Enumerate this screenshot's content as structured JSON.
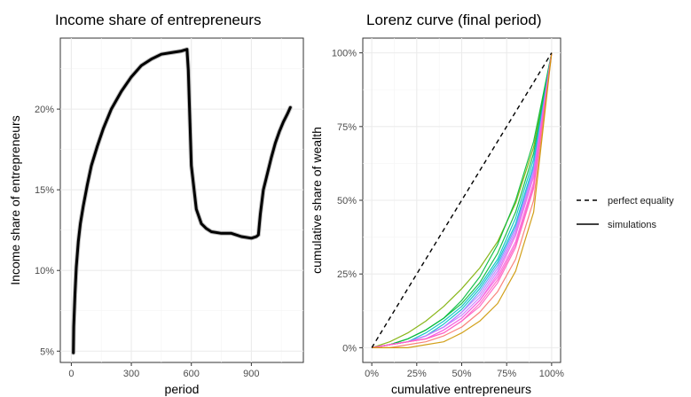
{
  "chart_data": [
    {
      "type": "line",
      "title": "Income share of entrepreneurs",
      "xlabel": "period",
      "ylabel": "Income share of entrepreneurs",
      "xlim": [
        -55,
        1160
      ],
      "ylim": [
        4.3,
        24.4
      ],
      "x_ticks": [
        0,
        300,
        600,
        900
      ],
      "x_tick_labels": [
        "0",
        "300",
        "600",
        "900"
      ],
      "y_ticks": [
        5,
        10,
        15,
        20
      ],
      "y_tick_labels": [
        "5%",
        "10%",
        "15%",
        "20%"
      ],
      "grid": true,
      "series": [
        {
          "color": "#000000",
          "x": [
            10,
            12,
            18,
            25,
            35,
            45,
            60,
            80,
            100,
            130,
            160,
            200,
            250,
            300,
            350,
            400,
            450,
            500,
            550,
            578,
            585,
            600,
            625,
            650,
            675,
            700,
            750,
            800,
            850,
            900,
            925,
            935,
            945,
            960,
            980,
            1000,
            1020,
            1040,
            1060,
            1080,
            1095
          ],
          "values": [
            4.9,
            6.5,
            8.5,
            10.2,
            11.8,
            12.9,
            14.0,
            15.3,
            16.5,
            17.7,
            18.8,
            20.0,
            21.1,
            22.0,
            22.7,
            23.1,
            23.4,
            23.5,
            23.6,
            23.7,
            22.4,
            16.5,
            13.8,
            12.9,
            12.6,
            12.4,
            12.3,
            12.3,
            12.1,
            12.0,
            12.1,
            12.2,
            13.5,
            15.0,
            16.0,
            17.0,
            17.9,
            18.6,
            19.2,
            19.7,
            20.1
          ]
        }
      ]
    },
    {
      "type": "line",
      "title": "Lorenz curve (final period)",
      "xlabel": "cumulative entrepreneurs",
      "ylabel": "cumulative share of wealth",
      "xlim": [
        -0.05,
        1.05
      ],
      "ylim": [
        -0.05,
        1.05
      ],
      "x_ticks": [
        0,
        0.25,
        0.5,
        0.75,
        1
      ],
      "x_tick_labels": [
        "0%",
        "25%",
        "50%",
        "75%",
        "100%"
      ],
      "y_ticks": [
        0,
        0.25,
        0.5,
        0.75,
        1
      ],
      "y_tick_labels": [
        "0%",
        "25%",
        "50%",
        "75%",
        "100%"
      ],
      "grid": true,
      "legend": {
        "position": "right",
        "entries": [
          {
            "label": "perfect equality",
            "linetype": "dashed"
          },
          {
            "label": "simulations",
            "linetype": "solid"
          }
        ]
      },
      "equality_line": {
        "x": [
          0,
          1
        ],
        "values": [
          0,
          1
        ]
      },
      "x": [
        0,
        0.1,
        0.2,
        0.3,
        0.4,
        0.5,
        0.6,
        0.7,
        0.8,
        0.9,
        1.0
      ],
      "series": [
        {
          "color": "#7cae00",
          "values": [
            0,
            0.02,
            0.05,
            0.09,
            0.14,
            0.2,
            0.27,
            0.36,
            0.49,
            0.68,
            1
          ]
        },
        {
          "color": "#00ba38",
          "values": [
            0,
            0.01,
            0.03,
            0.06,
            0.1,
            0.16,
            0.24,
            0.35,
            0.5,
            0.7,
            1
          ]
        },
        {
          "color": "#00ba38",
          "values": [
            0,
            0.01,
            0.03,
            0.06,
            0.1,
            0.15,
            0.22,
            0.32,
            0.46,
            0.66,
            1
          ]
        },
        {
          "color": "#00bfc4",
          "values": [
            0,
            0.01,
            0.02,
            0.05,
            0.09,
            0.14,
            0.21,
            0.3,
            0.44,
            0.64,
            1
          ]
        },
        {
          "color": "#00bfc4",
          "values": [
            0,
            0.01,
            0.02,
            0.04,
            0.08,
            0.13,
            0.2,
            0.29,
            0.42,
            0.62,
            1
          ]
        },
        {
          "color": "#619cff",
          "values": [
            0,
            0.01,
            0.02,
            0.04,
            0.07,
            0.12,
            0.19,
            0.28,
            0.41,
            0.61,
            1
          ]
        },
        {
          "color": "#c77cff",
          "values": [
            0,
            0.01,
            0.02,
            0.04,
            0.07,
            0.12,
            0.18,
            0.27,
            0.4,
            0.6,
            1
          ]
        },
        {
          "color": "#c77cff",
          "values": [
            0,
            0.01,
            0.02,
            0.04,
            0.07,
            0.11,
            0.17,
            0.26,
            0.39,
            0.59,
            1
          ]
        },
        {
          "color": "#f564e3",
          "values": [
            0,
            0.01,
            0.02,
            0.03,
            0.06,
            0.1,
            0.16,
            0.25,
            0.38,
            0.58,
            1
          ]
        },
        {
          "color": "#f564e3",
          "values": [
            0,
            0.01,
            0.02,
            0.03,
            0.06,
            0.1,
            0.16,
            0.24,
            0.36,
            0.56,
            1
          ]
        },
        {
          "color": "#ff61c3",
          "values": [
            0,
            0.01,
            0.02,
            0.03,
            0.05,
            0.09,
            0.15,
            0.23,
            0.35,
            0.55,
            1
          ]
        },
        {
          "color": "#ff61c3",
          "values": [
            0,
            0.01,
            0.02,
            0.03,
            0.05,
            0.09,
            0.14,
            0.22,
            0.34,
            0.54,
            1
          ]
        },
        {
          "color": "#f8766d",
          "values": [
            0,
            0.0,
            0.01,
            0.02,
            0.04,
            0.07,
            0.12,
            0.19,
            0.3,
            0.5,
            1
          ]
        },
        {
          "color": "#cd9600",
          "values": [
            0,
            0.0,
            0.0,
            0.01,
            0.02,
            0.05,
            0.09,
            0.15,
            0.26,
            0.46,
            1
          ]
        }
      ]
    }
  ]
}
